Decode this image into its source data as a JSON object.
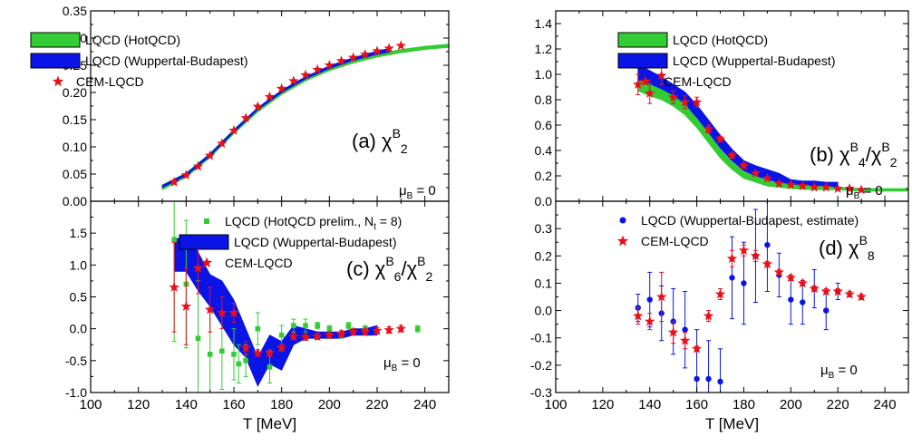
{
  "chart_data": [
    {
      "id": "a",
      "type": "line",
      "panel_label": "(a) χ",
      "label_sub": "2",
      "label_sup": "B",
      "annotation": "μ",
      "annotation_sub": "B",
      "annotation_tail": " = 0",
      "xlim": [
        100,
        250
      ],
      "ylim": [
        0,
        0.35
      ],
      "xticks": [
        100,
        120,
        140,
        160,
        180,
        200,
        220,
        240
      ],
      "yticks": [
        0.0,
        0.05,
        0.1,
        0.15,
        0.2,
        0.25,
        0.3,
        0.35
      ],
      "ytick_labels": [
        "0.00",
        "0.05",
        "0.10",
        "0.15",
        "0.20",
        "0.25",
        "0.30",
        "0.35"
      ],
      "legend": [
        {
          "kind": "band",
          "color": "#33cc33",
          "label": "LQCD (HotQCD)"
        },
        {
          "kind": "band",
          "color": "#0a14e6",
          "label": "LQCD (Wuppertal-Budapest)"
        },
        {
          "kind": "star",
          "color": "#e8101a",
          "label": "CEM-LQCD"
        }
      ],
      "bands": [
        {
          "name": "LQCD (HotQCD)",
          "color": "#33cc33",
          "x": [
            130,
            140,
            150,
            160,
            170,
            180,
            190,
            200,
            210,
            220,
            230,
            240,
            250
          ],
          "lower": [
            0.021,
            0.044,
            0.08,
            0.124,
            0.164,
            0.196,
            0.221,
            0.24,
            0.254,
            0.265,
            0.273,
            0.279,
            0.283
          ],
          "upper": [
            0.03,
            0.052,
            0.088,
            0.132,
            0.172,
            0.203,
            0.228,
            0.247,
            0.261,
            0.271,
            0.279,
            0.285,
            0.289
          ]
        },
        {
          "name": "LQCD (Wuppertal-Budapest)",
          "color": "#0a14e6",
          "x": [
            130,
            140,
            150,
            160,
            170,
            180,
            190,
            200,
            210,
            220,
            225
          ],
          "lower": [
            0.025,
            0.047,
            0.083,
            0.127,
            0.168,
            0.2,
            0.225,
            0.244,
            0.259,
            0.27,
            0.274
          ],
          "upper": [
            0.029,
            0.051,
            0.087,
            0.131,
            0.172,
            0.204,
            0.229,
            0.249,
            0.264,
            0.276,
            0.281
          ]
        }
      ],
      "scatter": [
        {
          "name": "CEM-LQCD",
          "marker": "star",
          "color": "#e8101a",
          "x": [
            135,
            140,
            145,
            150,
            155,
            160,
            165,
            170,
            175,
            180,
            185,
            190,
            195,
            200,
            205,
            210,
            215,
            220,
            225,
            230
          ],
          "y": [
            0.035,
            0.048,
            0.064,
            0.084,
            0.106,
            0.13,
            0.153,
            0.174,
            0.192,
            0.207,
            0.221,
            0.232,
            0.242,
            0.25,
            0.258,
            0.264,
            0.27,
            0.276,
            0.281,
            0.286
          ]
        }
      ]
    },
    {
      "id": "b",
      "type": "line",
      "panel_label": "(b) χ",
      "label_sub": "4",
      "label_sup": "B",
      "label_tail": "/χ",
      "label_sub2": "2",
      "label_sup2": "B",
      "annotation": "μ",
      "annotation_sub": "B",
      "annotation_tail": " = 0",
      "xlim": [
        100,
        250
      ],
      "ylim": [
        0,
        1.5
      ],
      "xticks": [
        100,
        120,
        140,
        160,
        180,
        200,
        220,
        240
      ],
      "yticks": [
        0.0,
        0.2,
        0.4,
        0.6,
        0.8,
        1.0,
        1.2,
        1.4
      ],
      "ytick_labels": [
        "0.0",
        "0.2",
        "0.4",
        "0.6",
        "0.8",
        "1.0",
        "1.2",
        "1.4"
      ],
      "legend": [
        {
          "kind": "band",
          "color": "#33cc33",
          "label": "LQCD (HotQCD)"
        },
        {
          "kind": "band",
          "color": "#0a14e6",
          "label": "LQCD (Wuppertal-Budapest)"
        },
        {
          "kind": "star",
          "color": "#e8101a",
          "label": "CEM-LQCD"
        }
      ],
      "bands": [
        {
          "name": "LQCD (Wuppertal-Budapest)",
          "color": "#0a14e6",
          "x": [
            135,
            140,
            145,
            150,
            155,
            160,
            165,
            170,
            175,
            180,
            185,
            190,
            195,
            200,
            205,
            210,
            215,
            220
          ],
          "lower": [
            0.9,
            0.87,
            0.84,
            0.8,
            0.75,
            0.66,
            0.54,
            0.42,
            0.32,
            0.24,
            0.2,
            0.17,
            0.15,
            0.13,
            0.12,
            0.12,
            0.12,
            0.11
          ],
          "upper": [
            1.08,
            1.03,
            0.98,
            0.92,
            0.86,
            0.76,
            0.64,
            0.52,
            0.41,
            0.32,
            0.28,
            0.25,
            0.22,
            0.17,
            0.16,
            0.16,
            0.15,
            0.15
          ]
        },
        {
          "name": "LQCD (HotQCD)",
          "color": "#33cc33",
          "x": [
            135,
            140,
            145,
            150,
            155,
            160,
            165,
            170,
            175,
            180,
            190,
            200,
            210,
            220,
            230,
            240,
            250
          ],
          "lower": [
            0.87,
            0.83,
            0.8,
            0.75,
            0.68,
            0.58,
            0.46,
            0.34,
            0.25,
            0.18,
            0.12,
            0.1,
            0.09,
            0.09,
            0.08,
            0.08,
            0.08
          ],
          "upper": [
            0.95,
            0.92,
            0.88,
            0.83,
            0.76,
            0.65,
            0.53,
            0.41,
            0.31,
            0.23,
            0.16,
            0.13,
            0.12,
            0.11,
            0.1,
            0.1,
            0.1
          ]
        }
      ],
      "scatter": [
        {
          "name": "CEM-LQCD",
          "marker": "star",
          "color": "#e8101a",
          "x": [
            135,
            140,
            145,
            150,
            155,
            160,
            165,
            170,
            175,
            180,
            185,
            190,
            195,
            200,
            205,
            210,
            215,
            220,
            225,
            230
          ],
          "y": [
            0.92,
            0.85,
            0.99,
            0.82,
            0.78,
            0.78,
            0.57,
            0.49,
            0.36,
            0.28,
            0.22,
            0.18,
            0.14,
            0.13,
            0.12,
            0.11,
            0.11,
            0.1,
            0.1,
            0.09
          ],
          "err": [
            0.08,
            0.08,
            0.07,
            0.05,
            0.05,
            0.04,
            0.03,
            0.02,
            0.02,
            0.02,
            0.01,
            0.01,
            0.01,
            0.01,
            0.01,
            0.01,
            0.01,
            0.01,
            0.01,
            0.01
          ]
        }
      ]
    },
    {
      "id": "c",
      "type": "line",
      "panel_label": "(c) χ",
      "label_sub": "6",
      "label_sup": "B",
      "label_tail": "/χ",
      "label_sub2": "2",
      "label_sup2": "B",
      "annotation": "μ",
      "annotation_sub": "B",
      "annotation_tail": " = 0",
      "xlabel": "T [MeV]",
      "xlim": [
        100,
        250
      ],
      "ylim": [
        -1.0,
        2.0
      ],
      "xticks": [
        100,
        120,
        140,
        160,
        180,
        200,
        220,
        240
      ],
      "xtick_labels": [
        "100",
        "120",
        "140",
        "160",
        "180",
        "200",
        "220",
        "240"
      ],
      "yticks": [
        -1.0,
        -0.5,
        0.0,
        0.5,
        1.0,
        1.5
      ],
      "ytick_labels": [
        "-1.0",
        "-0.5",
        "0.0",
        "0.5",
        "1.0",
        "1.5"
      ],
      "legend": [
        {
          "kind": "square",
          "color": "#33cc33",
          "label": "LQCD (HotQCD prelim., N",
          "label_sub": "t",
          "label_tail": " = 8)"
        },
        {
          "kind": "band",
          "color": "#0a14e6",
          "label": "LQCD (Wuppertal-Budapest)"
        },
        {
          "kind": "star",
          "color": "#e8101a",
          "label": "CEM-LQCD"
        }
      ],
      "bands": [
        {
          "name": "LQCD (Wuppertal-Budapest)",
          "color": "#0a14e6",
          "x": [
            135,
            140,
            145,
            150,
            155,
            160,
            165,
            170,
            175,
            180,
            185,
            190,
            195,
            200,
            205,
            210,
            215,
            220
          ],
          "lower": [
            0.9,
            0.9,
            0.6,
            0.35,
            0.05,
            -0.25,
            -0.45,
            -0.9,
            -0.55,
            -0.65,
            -0.25,
            -0.15,
            -0.15,
            -0.15,
            -0.15,
            -0.1,
            -0.1,
            -0.1
          ],
          "upper": [
            1.4,
            1.45,
            1.2,
            0.85,
            0.75,
            0.45,
            0.0,
            -0.45,
            -0.1,
            -0.2,
            0.05,
            0.0,
            -0.05,
            -0.05,
            -0.05,
            0.0,
            0.0,
            0.05
          ]
        }
      ],
      "scatter": [
        {
          "name": "LQCD (HotQCD prelim., Nt = 8)",
          "marker": "square",
          "color": "#33cc33",
          "x": [
            135,
            140,
            145,
            150,
            155,
            160,
            162,
            165,
            170,
            175,
            180,
            185,
            190,
            195,
            200,
            205,
            208,
            215,
            237
          ],
          "y": [
            1.4,
            0.7,
            -0.15,
            -0.4,
            -0.35,
            -0.4,
            -0.55,
            -0.5,
            0.0,
            -0.6,
            -0.1,
            0.05,
            0.05,
            0.05,
            0.0,
            -0.1,
            0.05,
            0.0,
            0.0
          ],
          "err": [
            1.6,
            1.0,
            0.9,
            0.7,
            0.6,
            0.4,
            0.3,
            0.25,
            0.25,
            0.25,
            0.15,
            0.1,
            0.1,
            0.05,
            0.05,
            0.05,
            0.05,
            0.05,
            0.05
          ]
        },
        {
          "name": "CEM-LQCD",
          "marker": "star",
          "color": "#e8101a",
          "x": [
            135,
            140,
            145,
            150,
            155,
            160,
            165,
            170,
            175,
            180,
            185,
            190,
            195,
            200,
            205,
            210,
            215,
            220,
            225,
            230
          ],
          "y": [
            0.65,
            0.35,
            0.95,
            0.3,
            0.25,
            0.25,
            -0.3,
            -0.38,
            -0.38,
            -0.3,
            -0.12,
            -0.13,
            -0.12,
            -0.1,
            -0.08,
            -0.05,
            -0.05,
            -0.03,
            -0.02,
            0.0
          ],
          "err": [
            0.7,
            0.6,
            0.4,
            0.35,
            0.25,
            0.15,
            0.1,
            0.05,
            0.05,
            0.05,
            0.05,
            0.05,
            0.05,
            0.05,
            0.05,
            0.05,
            0.05,
            0.05,
            0.05,
            0.05
          ]
        }
      ]
    },
    {
      "id": "d",
      "type": "scatter",
      "panel_label": "(d) χ",
      "label_sub": "8",
      "label_sup": "B",
      "annotation": "μ",
      "annotation_sub": "B",
      "annotation_tail": " = 0",
      "xlabel": "T [MeV]",
      "xlim": [
        100,
        250
      ],
      "ylim": [
        -0.3,
        0.4
      ],
      "xticks": [
        100,
        120,
        140,
        160,
        180,
        200,
        220,
        240
      ],
      "xtick_labels": [
        "100",
        "120",
        "140",
        "160",
        "180",
        "200",
        "220",
        "240"
      ],
      "yticks": [
        -0.3,
        -0.2,
        -0.1,
        0.0,
        0.1,
        0.2,
        0.3
      ],
      "ytick_labels": [
        "-0.3",
        "-0.2",
        "-0.1",
        "0.0",
        "0.1",
        "0.2",
        "0.3"
      ],
      "legend": [
        {
          "kind": "dot",
          "color": "#0a14e6",
          "label": "LQCD (Wuppertal-Budapest, estimate)"
        },
        {
          "kind": "star",
          "color": "#e8101a",
          "label": "CEM-LQCD"
        }
      ],
      "bands": [],
      "scatter": [
        {
          "name": "LQCD (Wuppertal-Budapest, estimate)",
          "marker": "dot",
          "color": "#0a14e6",
          "x": [
            135,
            140,
            145,
            150,
            155,
            160,
            165,
            170,
            175,
            180,
            185,
            190,
            195,
            200,
            205,
            210,
            215,
            220
          ],
          "y": [
            0.01,
            0.04,
            -0.01,
            -0.04,
            -0.07,
            -0.25,
            -0.25,
            -0.26,
            0.12,
            0.1,
            0.2,
            0.24,
            0.13,
            0.04,
            0.03,
            0.08,
            0.0,
            0.07
          ],
          "err": [
            0.05,
            0.1,
            0.1,
            0.12,
            0.14,
            0.18,
            0.14,
            0.12,
            0.15,
            0.15,
            0.17,
            0.17,
            0.08,
            0.09,
            0.08,
            0.07,
            0.07,
            0.03
          ]
        },
        {
          "name": "CEM-LQCD",
          "marker": "star",
          "color": "#e8101a",
          "x": [
            135,
            140,
            145,
            150,
            155,
            160,
            165,
            170,
            175,
            180,
            185,
            190,
            195,
            200,
            205,
            210,
            215,
            220,
            225,
            230
          ],
          "y": [
            -0.02,
            -0.04,
            0.05,
            -0.08,
            -0.11,
            -0.14,
            -0.02,
            0.06,
            0.19,
            0.22,
            0.2,
            0.17,
            0.14,
            0.12,
            0.1,
            0.08,
            0.07,
            0.07,
            0.06,
            0.05
          ],
          "err": [
            0.03,
            0.03,
            0.09,
            0.04,
            0.03,
            0.01,
            0.02,
            0.02,
            0.03,
            0.02,
            0.02,
            0.01,
            0.01,
            0.01,
            0.01,
            0.01,
            0.01,
            0.01,
            0.01,
            0.01
          ]
        }
      ]
    }
  ]
}
